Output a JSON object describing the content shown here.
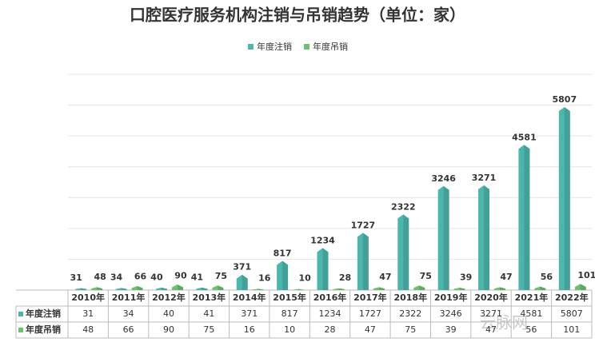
{
  "chart_data": {
    "type": "bar",
    "title": "口腔医疗服务机构注销与吊销趋势（单位：家）",
    "categories": [
      "2010年",
      "2011年",
      "2012年",
      "2013年",
      "2014年",
      "2015年",
      "2016年",
      "2017年",
      "2018年",
      "2019年",
      "2020年",
      "2021年",
      "2022年"
    ],
    "series": [
      {
        "name": "年度注销",
        "color": "#4db6ac",
        "values": [
          31,
          34,
          40,
          41,
          371,
          817,
          1234,
          1727,
          2322,
          3246,
          3271,
          4581,
          5807
        ]
      },
      {
        "name": "年度吊销",
        "color": "#6cc070",
        "values": [
          48,
          66,
          90,
          75,
          16,
          10,
          28,
          47,
          75,
          39,
          47,
          56,
          101
        ]
      }
    ],
    "ylim": [
      0,
      7000
    ],
    "yticks": [
      0,
      1000,
      2000,
      3000,
      4000,
      5000,
      6000,
      7000
    ],
    "grid": true,
    "legend": "top",
    "watermark": "云脉网"
  }
}
